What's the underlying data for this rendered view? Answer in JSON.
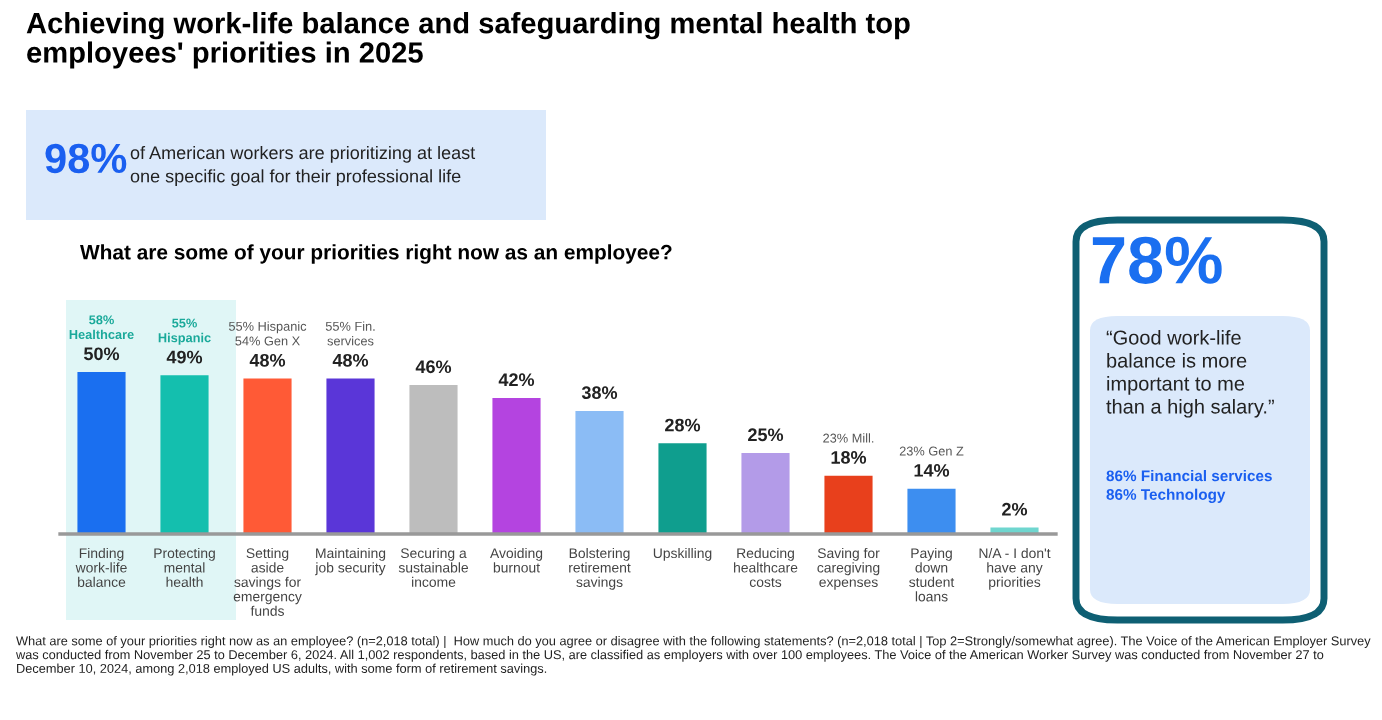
{
  "chart_data": {
    "type": "bar",
    "title": "Achieving work-life balance and safeguarding mental health top\nemployees' priorities in 2025",
    "subtitle": "What are some of your priorities right now as an employee?",
    "categories": [
      "Finding\nwork-life\nbalance",
      "Protecting\nmental\nhealth",
      "Setting\naside\nsavings for\nemergency\nfunds",
      "Maintaining\njob security",
      "Securing a\nsustainable\nincome",
      "Avoiding\nburnout",
      "Bolstering\nretirement\nsavings",
      "Upskilling",
      "Reducing\nhealthcare\ncosts",
      "Saving for\ncaregiving\nexpenses",
      "Paying\ndown\nstudent\nloans",
      "N/A - I don't\nhave any\npriorities"
    ],
    "values": [
      50,
      49,
      48,
      48,
      46,
      42,
      38,
      28,
      25,
      18,
      14,
      2
    ],
    "value_labels": [
      "50%",
      "49%",
      "48%",
      "48%",
      "46%",
      "42%",
      "38%",
      "28%",
      "25%",
      "18%",
      "14%",
      "2%"
    ],
    "colors": [
      "#1a6ff0",
      "#14bfae",
      "#ff5a36",
      "#5a36d8",
      "#bdbdbd",
      "#b444e0",
      "#8bbcf5",
      "#0f9e8e",
      "#b39be8",
      "#e8401c",
      "#3d8ef0",
      "#6fd6cf"
    ],
    "tick_labels": "x",
    "grid": false,
    "legend": false,
    "annotations": [
      "98%",
      "of American workers are prioritizing at least\none specific goal for their professional life",
      "78%",
      "“Good work-life\nbalance is more\nimportant to me\nthan a high salary.”",
      "86% Financial services\n86% Technology",
      "What are some of your priorities right now as an employee? (n=2,018 total) |  How much do you agree or disagree with the following statements? (n=2,018 total | Top 2=Strongly/somewhat agree). The Voice of the American Employer Survey was conducted from November 25 to December 6, 2024. All 1,002 respondents, based in the US, are classified as employers with over 100 employees. The Voice of the American Worker Survey was conducted from November 27 to December 10, 2024, among 2,018 employed US adults, with some form of retirement savings.",
      {
        "text": "58%\nHealthcare",
        "x": "Finding\nwork-life\nbalance",
        "y": 50
      },
      {
        "text": "55%\nHispanic",
        "x": "Protecting\nmental\nhealth",
        "y": 49
      },
      {
        "text": "55% Hispanic\n54% Gen X",
        "x": "Setting\naside\nsavings for\nemergency\nfunds",
        "y": 48
      },
      {
        "text": "55% Fin.\nservices",
        "x": "Maintaining\njob security",
        "y": 48
      },
      {
        "text": "23% Mill.",
        "x": "Saving for\ncaregiving\nexpenses",
        "y": 18
      },
      {
        "text": "23% Gen Z",
        "x": "Paying\ndown\nstudent\nloans",
        "y": 14
      }
    ]
  }
}
